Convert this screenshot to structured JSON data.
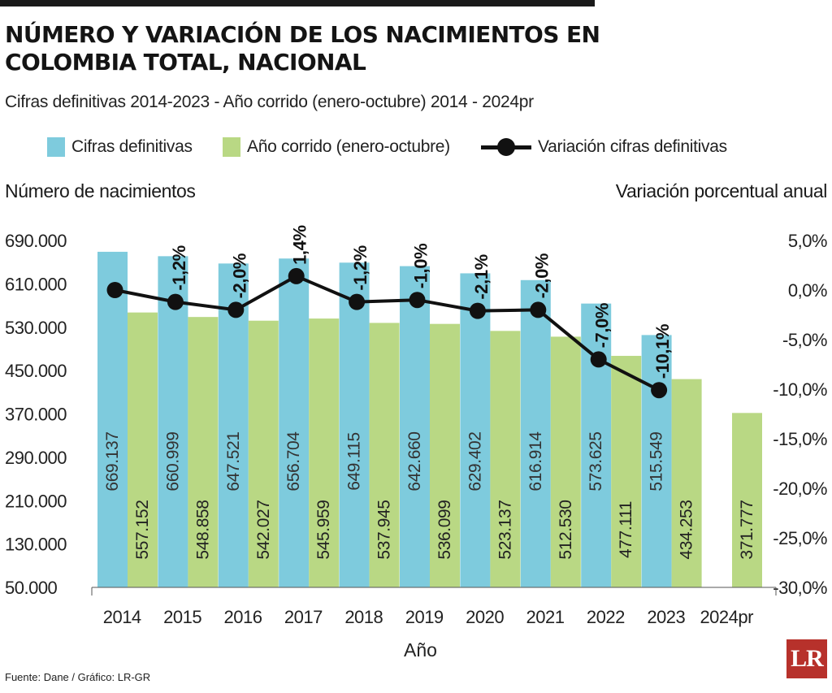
{
  "header": {
    "title": "NÚMERO Y VARIACIÓN DE LOS NACIMIENTOS EN COLOMBIA TOTAL, NACIONAL",
    "subtitle": "Cifras definitivas 2014-2023 - Año corrido (enero-octubre) 2014 - 2024pr"
  },
  "footer": {
    "source": "Fuente: Dane / Gráfico: LR-GR",
    "logo": "LR"
  },
  "colors": {
    "definitivas": "#7ecbdd",
    "corrido": "#b9d884",
    "variacion": "#111111"
  },
  "chart_data": {
    "type": "bar",
    "xlabel": "Año",
    "ylabel": "Número de nacimientos",
    "y2label": "Variación porcentual anual",
    "ylim": [
      50000,
      690000
    ],
    "y2lim": [
      -30,
      5
    ],
    "yticks": [
      "690.000",
      "610.000",
      "530.000",
      "450.000",
      "370.000",
      "290.000",
      "210.000",
      "130.000",
      "50.000"
    ],
    "y2ticks": [
      "5,0%",
      "0,0%",
      "-5,0%",
      "-10,0%",
      "-15,0%",
      "-20,0%",
      "-25,0%",
      "-30,0%"
    ],
    "categories": [
      "2014",
      "2015",
      "2016",
      "2017",
      "2018",
      "2019",
      "2020",
      "2021",
      "2022",
      "2023",
      "2024pr"
    ],
    "legend": [
      "Cifras definitivas",
      "Año corrido (enero-octubre)",
      "Variación cifras definitivas"
    ],
    "series": [
      {
        "name": "Cifras definitivas",
        "type": "bar",
        "values": [
          669137,
          660999,
          647521,
          656704,
          649115,
          642660,
          629402,
          616914,
          573625,
          515549,
          null
        ],
        "labels": [
          "669.137",
          "660.999",
          "647.521",
          "656.704",
          "649.115",
          "642.660",
          "629.402",
          "616.914",
          "573.625",
          "515.549",
          ""
        ]
      },
      {
        "name": "Año corrido (enero-octubre)",
        "type": "bar",
        "values": [
          557152,
          548858,
          542027,
          545959,
          537945,
          536099,
          523137,
          512530,
          477111,
          434253,
          371777
        ],
        "labels": [
          "557.152",
          "548.858",
          "542.027",
          "545.959",
          "537.945",
          "536.099",
          "523.137",
          "512.530",
          "477.111",
          "434.253",
          "371.777"
        ]
      },
      {
        "name": "Variación cifras definitivas",
        "type": "line",
        "axis": "right",
        "values": [
          0.0,
          -1.2,
          -2.0,
          1.4,
          -1.2,
          -1.0,
          -2.1,
          -2.0,
          -7.0,
          -10.1,
          null
        ],
        "labels": [
          "",
          "-1,2%",
          "-2,0%",
          "1,4%",
          "-1,2%",
          "-1,0%",
          "-2,1%",
          "-2,0%",
          "-7,0%",
          "-10,1%",
          ""
        ]
      }
    ]
  }
}
